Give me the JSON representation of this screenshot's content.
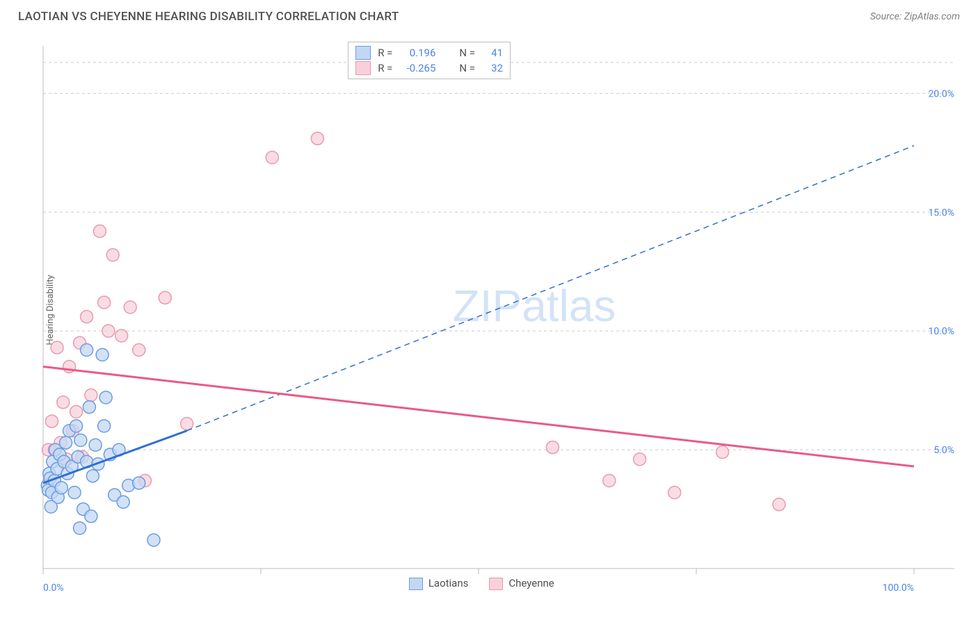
{
  "title": "LAOTIAN VS CHEYENNE HEARING DISABILITY CORRELATION CHART",
  "source": "Source: ZipAtlas.com",
  "y_axis_label": "Hearing Disability",
  "watermark": "ZIPatlas",
  "chart": {
    "type": "scatter",
    "xlim": [
      0,
      100
    ],
    "ylim": [
      0,
      22
    ],
    "x_ticks": [
      0,
      50,
      100
    ],
    "x_tick_labels": [
      "0.0%",
      "",
      "100.0%"
    ],
    "x_minor_ticks": [
      25,
      75
    ],
    "y_ticks": [
      5,
      10,
      15,
      20
    ],
    "y_tick_labels": [
      "5.0%",
      "10.0%",
      "15.0%",
      "20.0%"
    ],
    "background_color": "#ffffff",
    "grid_color": "#cccccc",
    "axis_color": "#bbbbbb",
    "series": [
      {
        "name": "Laotians",
        "marker_fill": "#c3d7f3",
        "marker_stroke": "#6a9de0",
        "marker_radius": 9,
        "line_color": "#2f6fd0",
        "line_width": 3,
        "R": "0.196",
        "N": "41",
        "trend_solid": {
          "x1": 0,
          "y1": 3.6,
          "x2": 16.5,
          "y2": 5.8
        },
        "trend_dashed": {
          "x1": 16.5,
          "y1": 5.8,
          "x2": 100,
          "y2": 17.8
        },
        "points": [
          [
            0.5,
            3.5
          ],
          [
            0.6,
            3.3
          ],
          [
            0.7,
            4.0
          ],
          [
            0.8,
            3.8
          ],
          [
            1.0,
            3.2
          ],
          [
            1.1,
            4.5
          ],
          [
            1.3,
            3.7
          ],
          [
            1.4,
            5.0
          ],
          [
            1.6,
            4.2
          ],
          [
            1.7,
            3.0
          ],
          [
            1.9,
            4.8
          ],
          [
            2.1,
            3.4
          ],
          [
            0.9,
            2.6
          ],
          [
            2.4,
            4.5
          ],
          [
            2.6,
            5.3
          ],
          [
            2.8,
            4.0
          ],
          [
            3.0,
            5.8
          ],
          [
            3.3,
            4.3
          ],
          [
            3.6,
            3.2
          ],
          [
            3.8,
            6.0
          ],
          [
            4.0,
            4.7
          ],
          [
            4.3,
            5.4
          ],
          [
            4.6,
            2.5
          ],
          [
            5.0,
            9.2
          ],
          [
            5.0,
            4.5
          ],
          [
            5.3,
            6.8
          ],
          [
            5.7,
            3.9
          ],
          [
            6.0,
            5.2
          ],
          [
            6.3,
            4.4
          ],
          [
            6.8,
            9.0
          ],
          [
            7.2,
            7.2
          ],
          [
            7.7,
            4.8
          ],
          [
            8.2,
            3.1
          ],
          [
            8.7,
            5.0
          ],
          [
            9.2,
            2.8
          ],
          [
            9.8,
            3.5
          ],
          [
            4.2,
            1.7
          ],
          [
            5.5,
            2.2
          ],
          [
            11.0,
            3.6
          ],
          [
            12.7,
            1.2
          ],
          [
            7.0,
            6.0
          ]
        ]
      },
      {
        "name": "Cheyenne",
        "marker_fill": "#f8d0db",
        "marker_stroke": "#e89ab0",
        "marker_radius": 9,
        "line_color": "#e85a86",
        "line_width": 3,
        "R": "-0.265",
        "N": "32",
        "trend_solid": {
          "x1": 0,
          "y1": 8.5,
          "x2": 100,
          "y2": 4.3
        },
        "points": [
          [
            0.6,
            5.0
          ],
          [
            1.0,
            6.2
          ],
          [
            1.3,
            5.0
          ],
          [
            1.6,
            9.3
          ],
          [
            2.0,
            5.3
          ],
          [
            2.3,
            7.0
          ],
          [
            2.7,
            4.6
          ],
          [
            3.0,
            8.5
          ],
          [
            3.4,
            5.8
          ],
          [
            3.8,
            6.6
          ],
          [
            4.2,
            9.5
          ],
          [
            4.5,
            4.7
          ],
          [
            5.0,
            10.6
          ],
          [
            5.5,
            7.3
          ],
          [
            6.5,
            14.2
          ],
          [
            7.0,
            11.2
          ],
          [
            7.5,
            10.0
          ],
          [
            8.0,
            13.2
          ],
          [
            9.0,
            9.8
          ],
          [
            10.0,
            11.0
          ],
          [
            11.0,
            9.2
          ],
          [
            11.7,
            3.7
          ],
          [
            14.0,
            11.4
          ],
          [
            16.5,
            6.1
          ],
          [
            26.3,
            17.3
          ],
          [
            31.5,
            18.1
          ],
          [
            65.0,
            3.7
          ],
          [
            68.5,
            4.6
          ],
          [
            72.5,
            3.2
          ],
          [
            78.0,
            4.9
          ],
          [
            84.5,
            2.7
          ],
          [
            58.5,
            5.1
          ]
        ]
      }
    ]
  },
  "top_legend": {
    "rows": [
      {
        "swatch_fill": "#c3d7f3",
        "swatch_stroke": "#6a9de0",
        "r_label": "R =",
        "r_val": "0.196",
        "n_label": "N =",
        "n_val": "41"
      },
      {
        "swatch_fill": "#f8d0db",
        "swatch_stroke": "#e89ab0",
        "r_label": "R =",
        "r_val": "-0.265",
        "n_label": "N =",
        "n_val": "32"
      }
    ]
  },
  "bottom_legend": {
    "items": [
      {
        "swatch_fill": "#c3d7f3",
        "swatch_stroke": "#6a9de0",
        "label": "Laotians"
      },
      {
        "swatch_fill": "#f8d0db",
        "swatch_stroke": "#e89ab0",
        "label": "Cheyenne"
      }
    ]
  }
}
